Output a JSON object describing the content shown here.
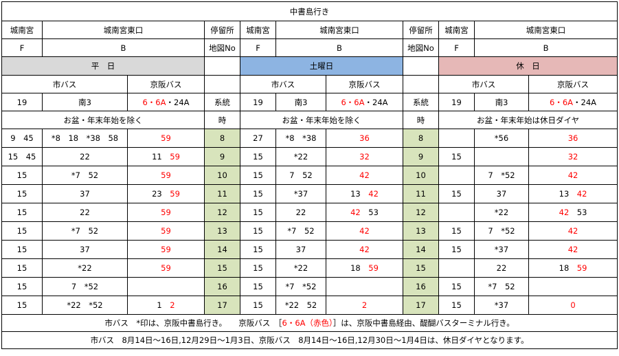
{
  "title": "中書島行き",
  "stop_label": "停留所",
  "map_label": "地図No",
  "series_label": "系統",
  "hour_label": "時",
  "sections": [
    {
      "stop_a": "城南宮",
      "stop_b": "城南宮東口",
      "map_a": "F",
      "map_b": "B",
      "day": "平　日",
      "city_bus": "市バス",
      "keihan_bus": "京阪バス",
      "route_city_1": "19",
      "route_city_2": "南3",
      "route_keihan_red": "6・6A",
      "route_keihan_black": "・24A",
      "note": "お盆・年末年始を除く",
      "color": "#d9d9d9"
    },
    {
      "stop_a": "城南宮",
      "stop_b": "城南宮東口",
      "map_a": "F",
      "map_b": "B",
      "day": "土曜日",
      "city_bus": "市バス",
      "keihan_bus": "京阪バス",
      "route_city_1": "19",
      "route_city_2": "南3",
      "route_keihan_red": "6・6A",
      "route_keihan_black": "・24A",
      "note": "お盆・年末年始を除く",
      "color": "#8db4e2"
    },
    {
      "stop_a": "城南宮",
      "stop_b": "城南宮東口",
      "map_a": "F",
      "map_b": "B",
      "day": "休　日",
      "city_bus": "市バス",
      "keihan_bus": "京阪バス",
      "route_city_1": "19",
      "route_city_2": "南3",
      "route_keihan_red": "6・6A",
      "route_keihan_black": "・24A",
      "note": "お盆・年末年始は休日ダイヤ",
      "color": "#e6b8b7"
    }
  ],
  "rows": [
    {
      "hour": "8",
      "wd": {
        "c19": "9　45",
        "s3": "*8　18　*38　58",
        "kb": "",
        "kr": "59"
      },
      "sa": {
        "c19": "27",
        "s3": "*8　*38",
        "kb": "",
        "kr": "36"
      },
      "ho": {
        "c19": "",
        "s3": "*56",
        "kb": "",
        "kr": "36"
      }
    },
    {
      "hour": "9",
      "wd": {
        "c19": "15　45",
        "s3": "22",
        "kb": "11",
        "kr": "59"
      },
      "sa": {
        "c19": "15",
        "s3": "*22",
        "kb": "",
        "kr": "32"
      },
      "ho": {
        "c19": "15",
        "s3": "",
        "kb": "",
        "kr": "32"
      }
    },
    {
      "hour": "10",
      "wd": {
        "c19": "15",
        "s3": "*7　52",
        "kb": "",
        "kr": "59"
      },
      "sa": {
        "c19": "15",
        "s3": "7　52",
        "kb": "",
        "kr": "42"
      },
      "ho": {
        "c19": "",
        "s3": "7　*52",
        "kb": "",
        "kr": "42"
      }
    },
    {
      "hour": "11",
      "wd": {
        "c19": "15",
        "s3": "37",
        "kb": "23",
        "kr": "59"
      },
      "sa": {
        "c19": "15",
        "s3": "*37",
        "kb": "13",
        "kr": "42"
      },
      "ho": {
        "c19": "15",
        "s3": "37",
        "kb": "13",
        "kr": "42"
      }
    },
    {
      "hour": "12",
      "wd": {
        "c19": "15",
        "s3": "22",
        "kb": "",
        "kr": "59"
      },
      "sa": {
        "c19": "15",
        "s3": "22",
        "kb": "",
        "kr": "42",
        "ka": "53"
      },
      "ho": {
        "c19": "",
        "s3": "*22",
        "kb": "",
        "kr": "42",
        "ka": "53"
      }
    },
    {
      "hour": "13",
      "wd": {
        "c19": "15",
        "s3": "*7　52",
        "kb": "",
        "kr": "59"
      },
      "sa": {
        "c19": "15",
        "s3": "*7　52",
        "kb": "",
        "kr": "42"
      },
      "ho": {
        "c19": "15",
        "s3": "7　*52",
        "kb": "",
        "kr": "42"
      }
    },
    {
      "hour": "14",
      "wd": {
        "c19": "15",
        "s3": "37",
        "kb": "",
        "kr": "59"
      },
      "sa": {
        "c19": "15",
        "s3": "37",
        "kb": "",
        "kr": "42"
      },
      "ho": {
        "c19": "15",
        "s3": "*37",
        "kb": "",
        "kr": "42"
      }
    },
    {
      "hour": "15",
      "wd": {
        "c19": "15",
        "s3": "*22",
        "kb": "",
        "kr": "59"
      },
      "sa": {
        "c19": "15",
        "s3": "*22",
        "kb": "18",
        "kr": "59"
      },
      "ho": {
        "c19": "",
        "s3": "22",
        "kb": "18",
        "kr": "59"
      }
    },
    {
      "hour": "16",
      "wd": {
        "c19": "15",
        "s3": "7　*52",
        "kb": "",
        "kr": ""
      },
      "sa": {
        "c19": "15",
        "s3": "*7　*52",
        "kb": "",
        "kr": ""
      },
      "ho": {
        "c19": "15",
        "s3": "*7　52",
        "kb": "",
        "kr": ""
      }
    },
    {
      "hour": "17",
      "wd": {
        "c19": "15",
        "s3": "*22　*52",
        "kb": "1",
        "kr": "2"
      },
      "sa": {
        "c19": "15",
        "s3": "*22　52",
        "kb": "",
        "kr": "2"
      },
      "ho": {
        "c19": "15",
        "s3": "*37",
        "kb": "",
        "kr": "0"
      }
    }
  ],
  "notes": {
    "line1_a": "市バス　*印は、京阪中書島行き。　　京阪バス　［",
    "line1_red": "6・6A（赤色）",
    "line1_b": "］は、京阪中書島経由、醍醐バスターミナル行き。",
    "line2": "市バス　8月14日～16日,12月29日～1月3日、京阪バス　8月14日～16日,12月30日～1月4日は、休日ダイヤとなります。"
  }
}
